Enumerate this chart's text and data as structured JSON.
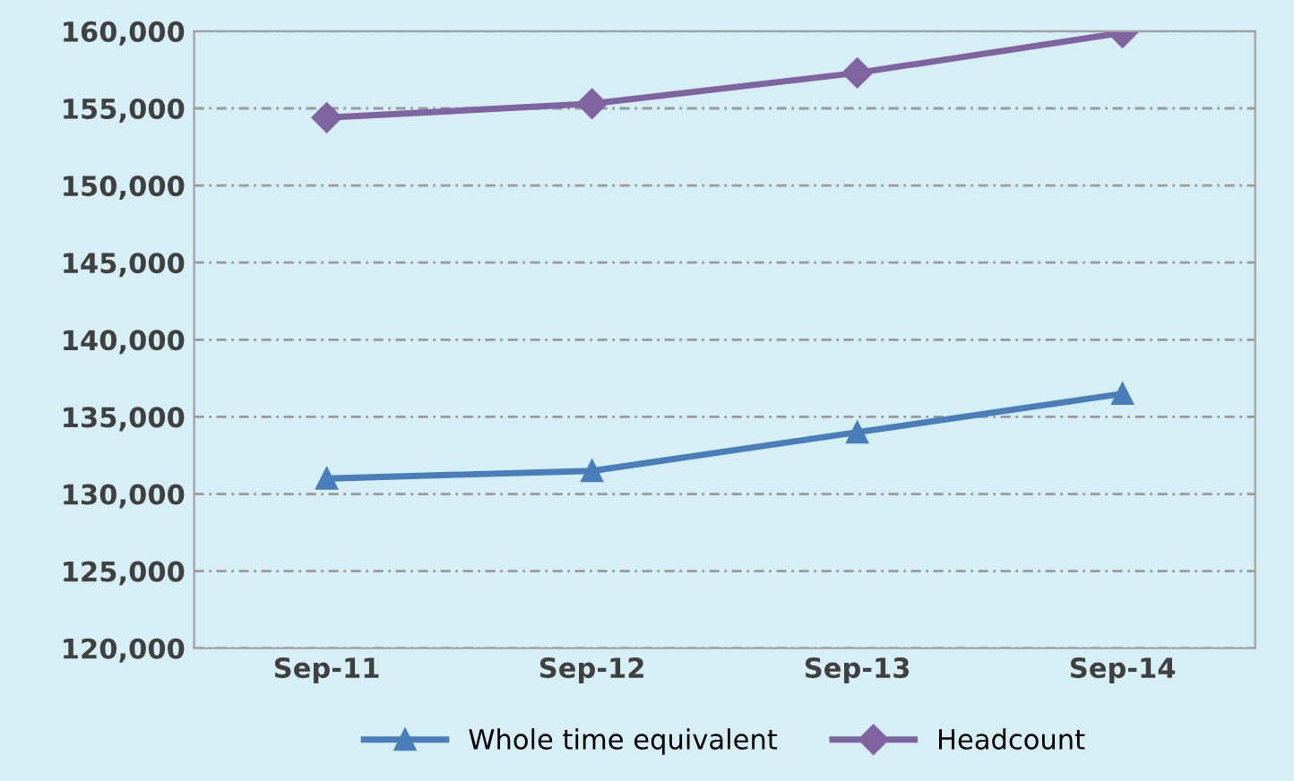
{
  "chart_data": {
    "type": "line",
    "categories": [
      "Sep-11",
      "Sep-12",
      "Sep-13",
      "Sep-14"
    ],
    "series": [
      {
        "name": "Whole time equivalent",
        "color": "#4a7ebb",
        "values": [
          131000,
          131500,
          134000,
          136500
        ],
        "marker": "triangle"
      },
      {
        "name": "Headcount",
        "color": "#8064a2",
        "values": [
          154400,
          155300,
          157300,
          159900
        ],
        "marker": "diamond"
      }
    ],
    "ylim": [
      120000,
      160000
    ],
    "yticks": [
      {
        "value": 120000,
        "label": "120,000"
      },
      {
        "value": 125000,
        "label": "125,000"
      },
      {
        "value": 130000,
        "label": "130,000"
      },
      {
        "value": 135000,
        "label": "135,000"
      },
      {
        "value": 140000,
        "label": "140,000"
      },
      {
        "value": 145000,
        "label": "145,000"
      },
      {
        "value": 150000,
        "label": "150,000"
      },
      {
        "value": 155000,
        "label": "155,000"
      },
      {
        "value": 160000,
        "label": "160,000"
      }
    ],
    "grid": "y",
    "legend": "bottom",
    "line_style": "solid"
  }
}
